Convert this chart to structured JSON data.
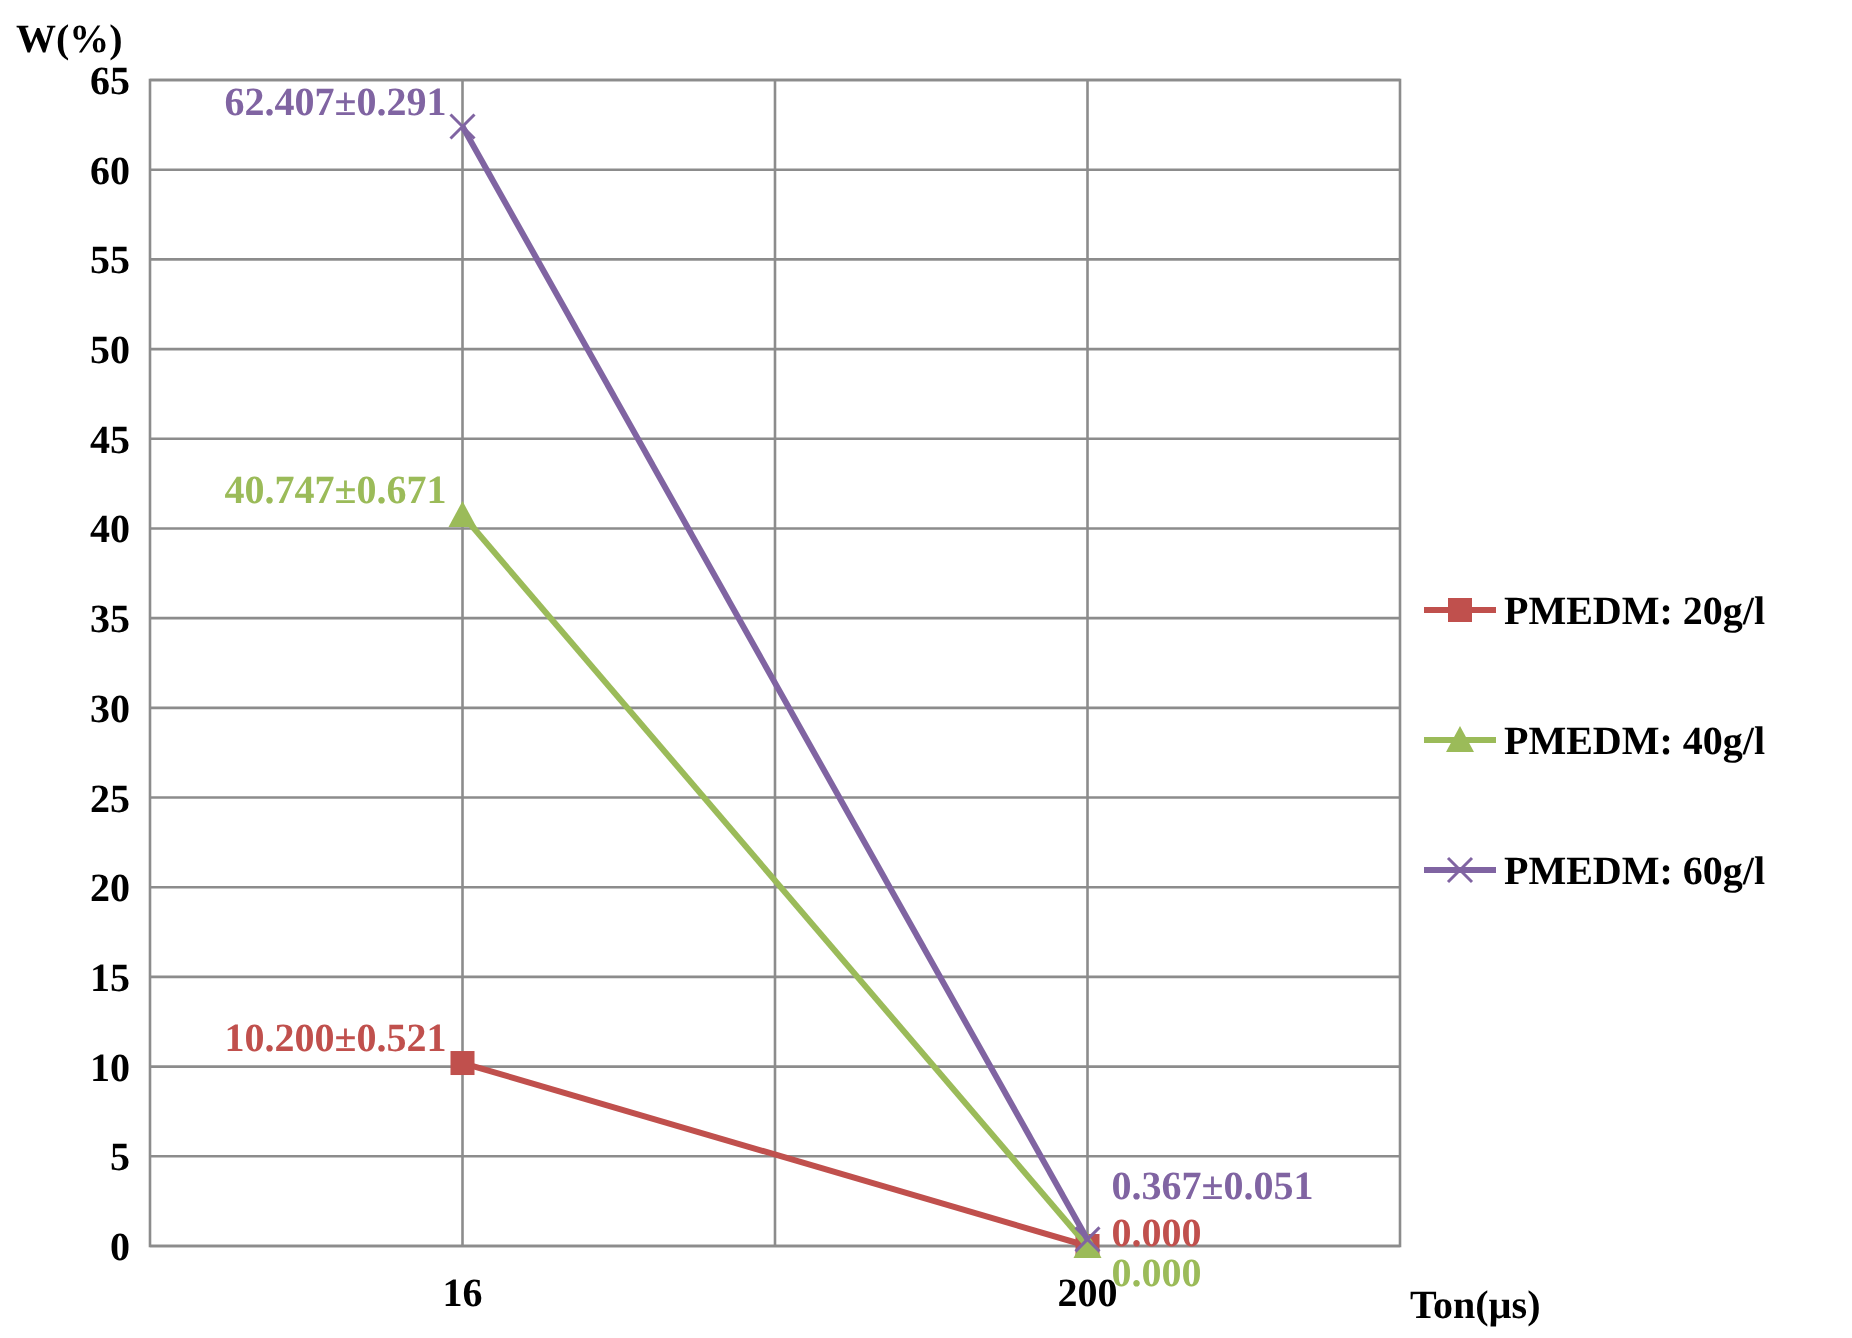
{
  "chart_data": {
    "type": "line",
    "xlabel": "Ton(µs)",
    "ylabel": "W(%)",
    "categories": [
      "16",
      "200"
    ],
    "ylim": [
      0,
      65
    ],
    "yticks": [
      0,
      5,
      10,
      15,
      20,
      25,
      30,
      35,
      40,
      45,
      50,
      55,
      60,
      65
    ],
    "grid": true,
    "legend": "right",
    "series": [
      {
        "name": "PMEDM: 20g/l",
        "color": "#c0504d",
        "marker": "square",
        "values": [
          10.2,
          0
        ],
        "value_labels": [
          "10.200±0.521",
          "0.000"
        ]
      },
      {
        "name": "PMEDM: 40g/l",
        "color": "#9bbb59",
        "marker": "triangle",
        "values": [
          40.747,
          0
        ],
        "value_labels": [
          "40.747±0.671",
          "0.000"
        ]
      },
      {
        "name": "PMEDM: 60g/l",
        "color": "#8064a2",
        "marker": "cross",
        "values": [
          62.407,
          0.367
        ],
        "value_labels": [
          "62.407±0.291",
          "0.367±0.051"
        ]
      }
    ]
  }
}
